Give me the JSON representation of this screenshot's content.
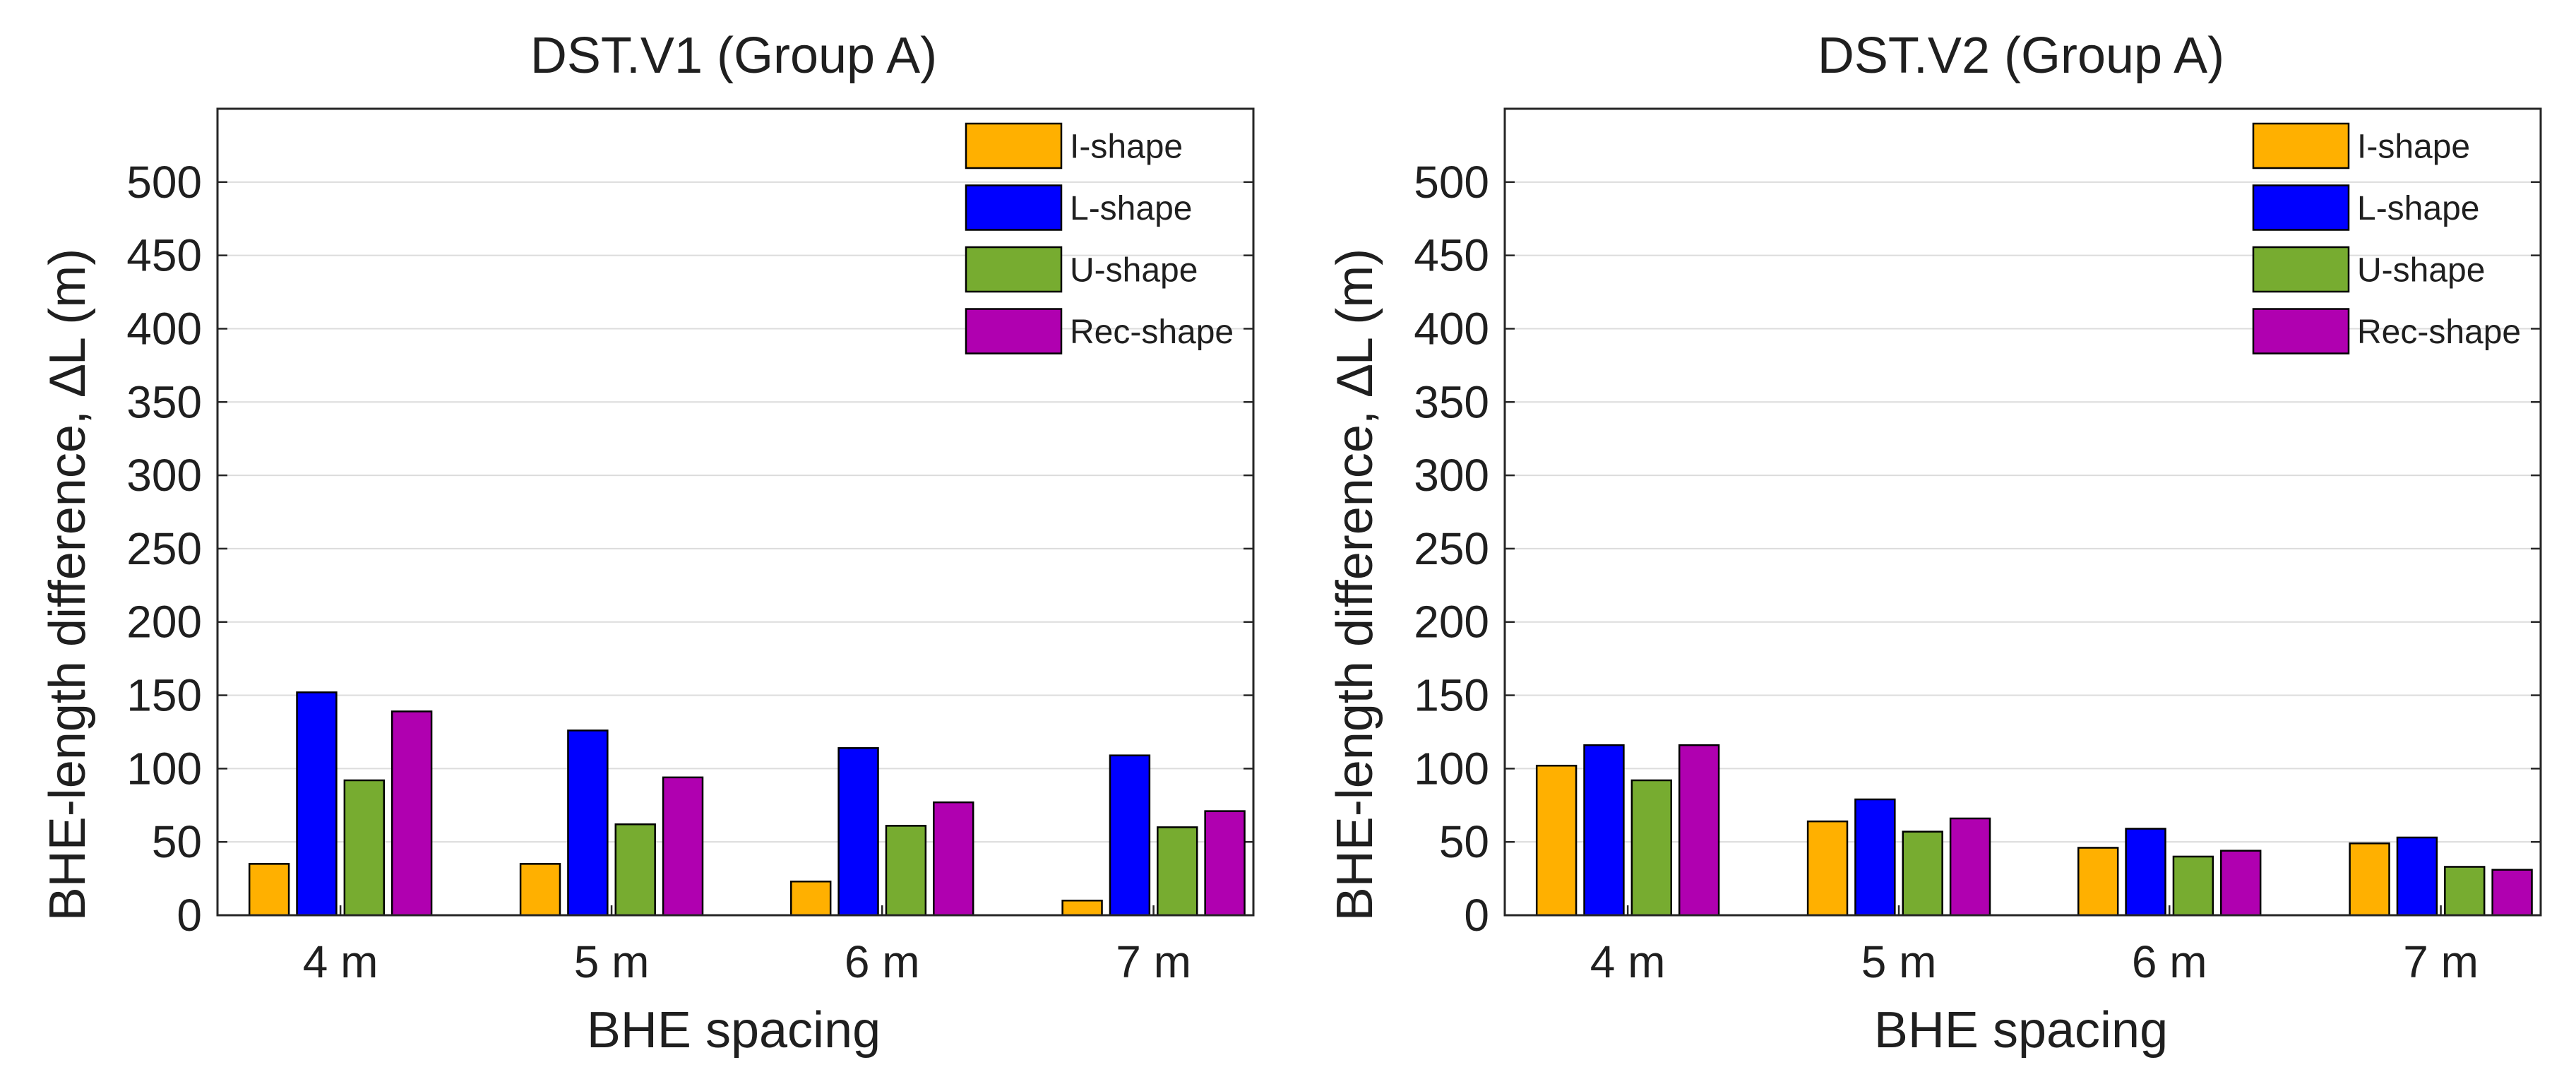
{
  "chart_data": [
    {
      "type": "bar",
      "title": "DST.V1 (Group A)",
      "xlabel": "BHE spacing",
      "ylabel": "BHE-length difference, ∆L (m)",
      "categories": [
        "4 m",
        "5 m",
        "6 m",
        "7 m"
      ],
      "ylim": [
        0,
        550
      ],
      "yticks": [
        "0",
        "50",
        "100",
        "150",
        "200",
        "250",
        "300",
        "350",
        "400",
        "450",
        "500"
      ],
      "grid": true,
      "legend_position": "top-right",
      "series": [
        {
          "name": "I-shape",
          "color": "#FFB000",
          "values": [
            35,
            35,
            23,
            10
          ]
        },
        {
          "name": "L-shape",
          "color": "#0000FF",
          "values": [
            152,
            126,
            114,
            109
          ]
        },
        {
          "name": "U-shape",
          "color": "#77AC30",
          "values": [
            92,
            62,
            61,
            60
          ]
        },
        {
          "name": "Rec-shape",
          "color": "#B000B0",
          "values": [
            139,
            94,
            77,
            71
          ]
        }
      ]
    },
    {
      "type": "bar",
      "title": "DST.V2 (Group A)",
      "xlabel": "BHE spacing",
      "ylabel": "BHE-length difference, ∆L (m)",
      "categories": [
        "4 m",
        "5 m",
        "6 m",
        "7 m"
      ],
      "ylim": [
        0,
        550
      ],
      "yticks": [
        "0",
        "50",
        "100",
        "150",
        "200",
        "250",
        "300",
        "350",
        "400",
        "450",
        "500"
      ],
      "grid": true,
      "legend_position": "top-right",
      "series": [
        {
          "name": "I-shape",
          "color": "#FFB000",
          "values": [
            102,
            64,
            46,
            49
          ]
        },
        {
          "name": "L-shape",
          "color": "#0000FF",
          "values": [
            116,
            79,
            59,
            53
          ]
        },
        {
          "name": "U-shape",
          "color": "#77AC30",
          "values": [
            92,
            57,
            40,
            33
          ]
        },
        {
          "name": "Rec-shape",
          "color": "#B000B0",
          "values": [
            116,
            66,
            44,
            31
          ]
        }
      ]
    }
  ]
}
